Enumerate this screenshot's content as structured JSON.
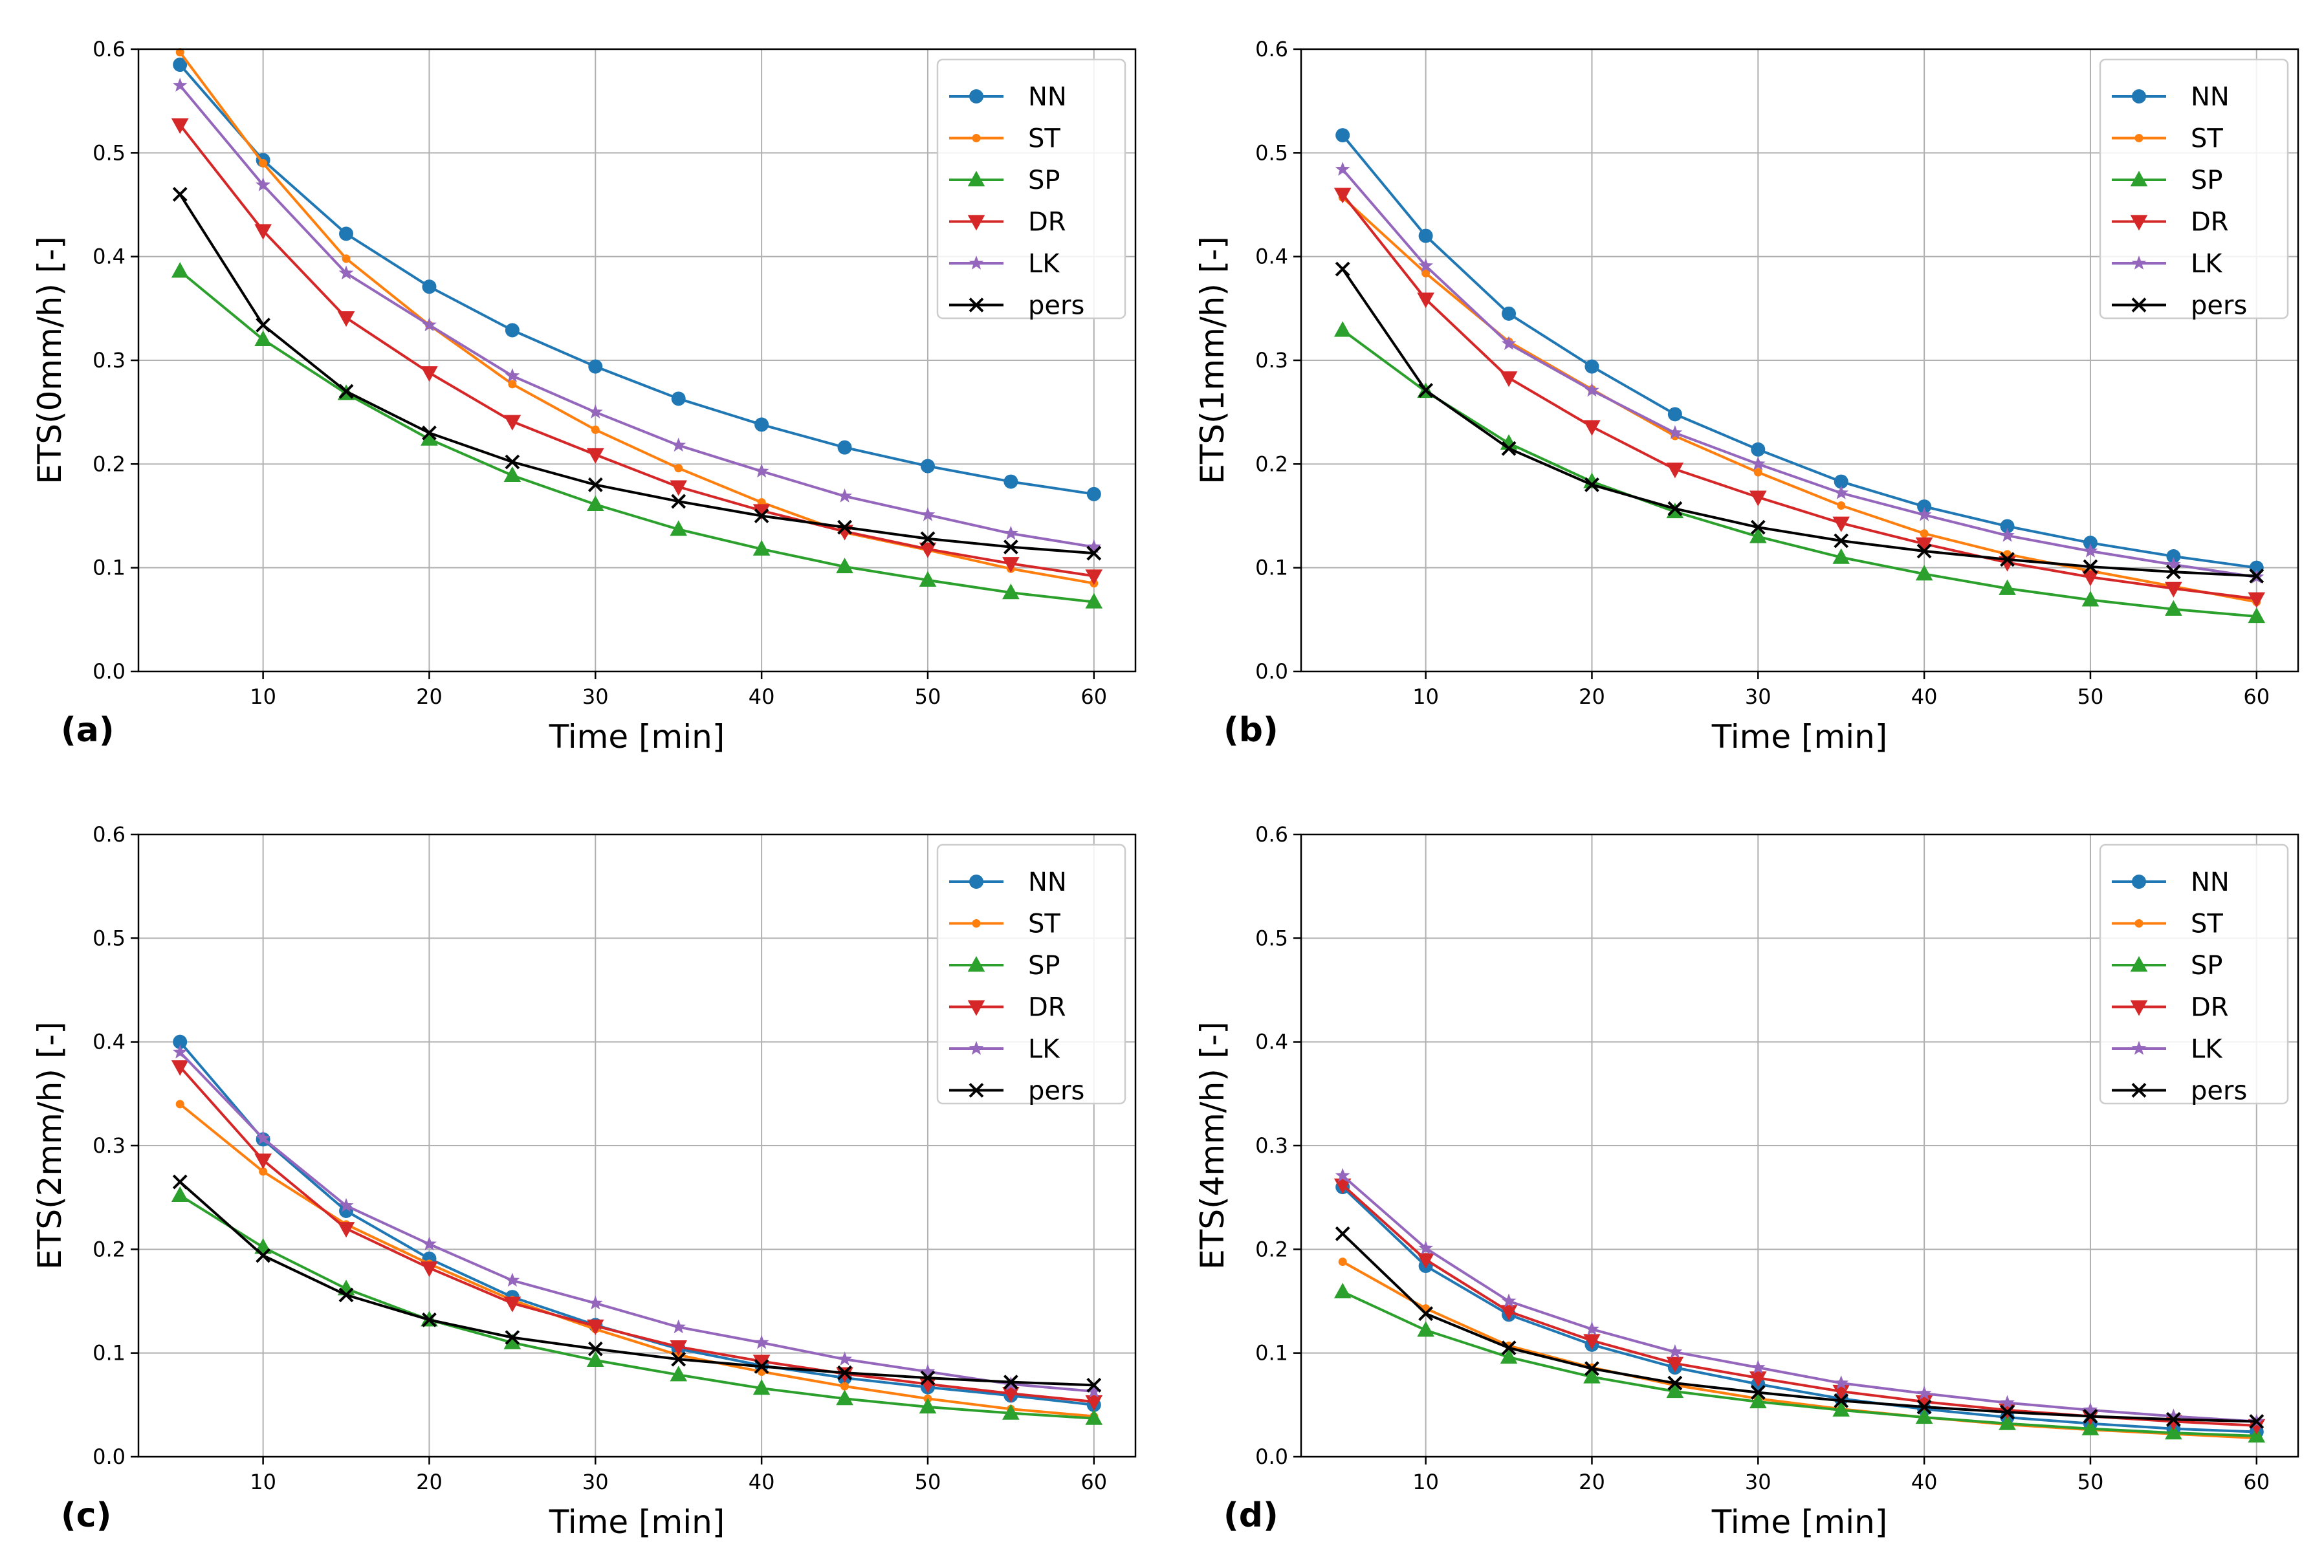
{
  "chart_data": [
    {
      "type": "line",
      "panel_label": "(a)",
      "xlabel": "Time [min]",
      "ylabel": "ETS(0mm/h) [-]",
      "xlim": [
        2.5,
        62.5
      ],
      "ylim": [
        0.0,
        0.6
      ],
      "xticks": [
        10,
        20,
        30,
        40,
        50,
        60
      ],
      "yticks": [
        0.0,
        0.1,
        0.2,
        0.3,
        0.4,
        0.5,
        0.6
      ],
      "grid": true,
      "legend_position": "top-right",
      "x": [
        5,
        10,
        15,
        20,
        25,
        30,
        35,
        40,
        45,
        50,
        55,
        60
      ],
      "series": [
        {
          "name": "NN",
          "color": "#1f77b4",
          "marker": "circle",
          "values": [
            0.585,
            0.493,
            0.422,
            0.371,
            0.329,
            0.294,
            0.263,
            0.238,
            0.216,
            0.198,
            0.183,
            0.171
          ]
        },
        {
          "name": "ST",
          "color": "#ff7f0e",
          "marker": "point",
          "values": [
            0.597,
            0.49,
            0.398,
            0.334,
            0.277,
            0.233,
            0.196,
            0.163,
            0.134,
            0.117,
            0.099,
            0.085
          ]
        },
        {
          "name": "SP",
          "color": "#2ca02c",
          "marker": "triangle-up",
          "values": [
            0.386,
            0.32,
            0.268,
            0.224,
            0.189,
            0.161,
            0.137,
            0.118,
            0.101,
            0.088,
            0.076,
            0.067
          ]
        },
        {
          "name": "DR",
          "color": "#d62728",
          "marker": "triangle-down",
          "values": [
            0.527,
            0.425,
            0.341,
            0.288,
            0.241,
            0.209,
            0.178,
            0.155,
            0.135,
            0.118,
            0.104,
            0.092
          ]
        },
        {
          "name": "LK",
          "color": "#9467bd",
          "marker": "star",
          "values": [
            0.565,
            0.469,
            0.384,
            0.334,
            0.285,
            0.25,
            0.218,
            0.193,
            0.169,
            0.151,
            0.133,
            0.12
          ]
        },
        {
          "name": "pers",
          "color": "#000000",
          "marker": "x",
          "values": [
            0.46,
            0.334,
            0.27,
            0.23,
            0.202,
            0.18,
            0.164,
            0.15,
            0.139,
            0.128,
            0.12,
            0.114
          ]
        }
      ]
    },
    {
      "type": "line",
      "panel_label": "(b)",
      "xlabel": "Time [min]",
      "ylabel": "ETS(1mm/h) [-]",
      "xlim": [
        2.5,
        62.5
      ],
      "ylim": [
        0.0,
        0.6
      ],
      "xticks": [
        10,
        20,
        30,
        40,
        50,
        60
      ],
      "yticks": [
        0.0,
        0.1,
        0.2,
        0.3,
        0.4,
        0.5,
        0.6
      ],
      "grid": true,
      "legend_position": "top-right",
      "x": [
        5,
        10,
        15,
        20,
        25,
        30,
        35,
        40,
        45,
        50,
        55,
        60
      ],
      "series": [
        {
          "name": "NN",
          "color": "#1f77b4",
          "marker": "circle",
          "values": [
            0.517,
            0.42,
            0.345,
            0.294,
            0.248,
            0.214,
            0.183,
            0.159,
            0.14,
            0.124,
            0.111,
            0.1
          ]
        },
        {
          "name": "ST",
          "color": "#ff7f0e",
          "marker": "point",
          "values": [
            0.457,
            0.384,
            0.318,
            0.272,
            0.227,
            0.192,
            0.16,
            0.133,
            0.113,
            0.097,
            0.082,
            0.067
          ]
        },
        {
          "name": "SP",
          "color": "#2ca02c",
          "marker": "triangle-up",
          "values": [
            0.329,
            0.27,
            0.22,
            0.183,
            0.154,
            0.13,
            0.11,
            0.094,
            0.08,
            0.069,
            0.06,
            0.053
          ]
        },
        {
          "name": "DR",
          "color": "#d62728",
          "marker": "triangle-down",
          "values": [
            0.46,
            0.359,
            0.283,
            0.236,
            0.195,
            0.168,
            0.143,
            0.123,
            0.105,
            0.091,
            0.08,
            0.07
          ]
        },
        {
          "name": "LK",
          "color": "#9467bd",
          "marker": "star",
          "values": [
            0.484,
            0.391,
            0.316,
            0.271,
            0.23,
            0.2,
            0.172,
            0.151,
            0.131,
            0.116,
            0.103,
            0.091
          ]
        },
        {
          "name": "pers",
          "color": "#000000",
          "marker": "x",
          "values": [
            0.388,
            0.271,
            0.215,
            0.18,
            0.157,
            0.139,
            0.126,
            0.116,
            0.108,
            0.101,
            0.096,
            0.092
          ]
        }
      ]
    },
    {
      "type": "line",
      "panel_label": "(c)",
      "xlabel": "Time [min]",
      "ylabel": "ETS(2mm/h) [-]",
      "xlim": [
        2.5,
        62.5
      ],
      "ylim": [
        0.0,
        0.6
      ],
      "xticks": [
        10,
        20,
        30,
        40,
        50,
        60
      ],
      "yticks": [
        0.0,
        0.1,
        0.2,
        0.3,
        0.4,
        0.5,
        0.6
      ],
      "grid": true,
      "legend_position": "top-right",
      "x": [
        5,
        10,
        15,
        20,
        25,
        30,
        35,
        40,
        45,
        50,
        55,
        60
      ],
      "series": [
        {
          "name": "NN",
          "color": "#1f77b4",
          "marker": "circle",
          "values": [
            0.4,
            0.306,
            0.237,
            0.191,
            0.154,
            0.127,
            0.104,
            0.088,
            0.076,
            0.067,
            0.059,
            0.05
          ]
        },
        {
          "name": "ST",
          "color": "#ff7f0e",
          "marker": "point",
          "values": [
            0.34,
            0.275,
            0.224,
            0.186,
            0.151,
            0.123,
            0.098,
            0.082,
            0.068,
            0.056,
            0.046,
            0.039
          ]
        },
        {
          "name": "SP",
          "color": "#2ca02c",
          "marker": "triangle-up",
          "values": [
            0.252,
            0.202,
            0.162,
            0.132,
            0.11,
            0.093,
            0.079,
            0.066,
            0.056,
            0.048,
            0.042,
            0.037
          ]
        },
        {
          "name": "DR",
          "color": "#d62728",
          "marker": "triangle-down",
          "values": [
            0.376,
            0.286,
            0.22,
            0.182,
            0.148,
            0.126,
            0.106,
            0.092,
            0.08,
            0.07,
            0.061,
            0.053
          ]
        },
        {
          "name": "LK",
          "color": "#9467bd",
          "marker": "star",
          "values": [
            0.39,
            0.307,
            0.242,
            0.205,
            0.17,
            0.148,
            0.125,
            0.11,
            0.094,
            0.082,
            0.07,
            0.063
          ]
        },
        {
          "name": "pers",
          "color": "#000000",
          "marker": "x",
          "values": [
            0.265,
            0.194,
            0.156,
            0.132,
            0.115,
            0.104,
            0.094,
            0.087,
            0.081,
            0.076,
            0.072,
            0.069
          ]
        }
      ]
    },
    {
      "type": "line",
      "panel_label": "(d)",
      "xlabel": "Time [min]",
      "ylabel": "ETS(4mm/h) [-]",
      "xlim": [
        2.5,
        62.5
      ],
      "ylim": [
        0.0,
        0.6
      ],
      "xticks": [
        10,
        20,
        30,
        40,
        50,
        60
      ],
      "yticks": [
        0.0,
        0.1,
        0.2,
        0.3,
        0.4,
        0.5,
        0.6
      ],
      "grid": true,
      "legend_position": "top-right",
      "x": [
        5,
        10,
        15,
        20,
        25,
        30,
        35,
        40,
        45,
        50,
        55,
        60
      ],
      "series": [
        {
          "name": "NN",
          "color": "#1f77b4",
          "marker": "circle",
          "values": [
            0.26,
            0.184,
            0.137,
            0.108,
            0.086,
            0.07,
            0.056,
            0.046,
            0.038,
            0.032,
            0.027,
            0.024
          ]
        },
        {
          "name": "ST",
          "color": "#ff7f0e",
          "marker": "point",
          "values": [
            0.188,
            0.143,
            0.107,
            0.086,
            0.069,
            0.056,
            0.046,
            0.038,
            0.031,
            0.026,
            0.022,
            0.018
          ]
        },
        {
          "name": "SP",
          "color": "#2ca02c",
          "marker": "triangle-up",
          "values": [
            0.159,
            0.122,
            0.096,
            0.077,
            0.063,
            0.053,
            0.045,
            0.038,
            0.032,
            0.027,
            0.023,
            0.02
          ]
        },
        {
          "name": "DR",
          "color": "#d62728",
          "marker": "triangle-down",
          "values": [
            0.262,
            0.19,
            0.14,
            0.112,
            0.09,
            0.076,
            0.063,
            0.053,
            0.045,
            0.039,
            0.034,
            0.03
          ]
        },
        {
          "name": "LK",
          "color": "#9467bd",
          "marker": "star",
          "values": [
            0.271,
            0.201,
            0.15,
            0.123,
            0.101,
            0.086,
            0.071,
            0.061,
            0.052,
            0.045,
            0.039,
            0.034
          ]
        },
        {
          "name": "pers",
          "color": "#000000",
          "marker": "x",
          "values": [
            0.215,
            0.138,
            0.105,
            0.085,
            0.071,
            0.062,
            0.054,
            0.048,
            0.043,
            0.039,
            0.036,
            0.034
          ]
        }
      ]
    }
  ]
}
